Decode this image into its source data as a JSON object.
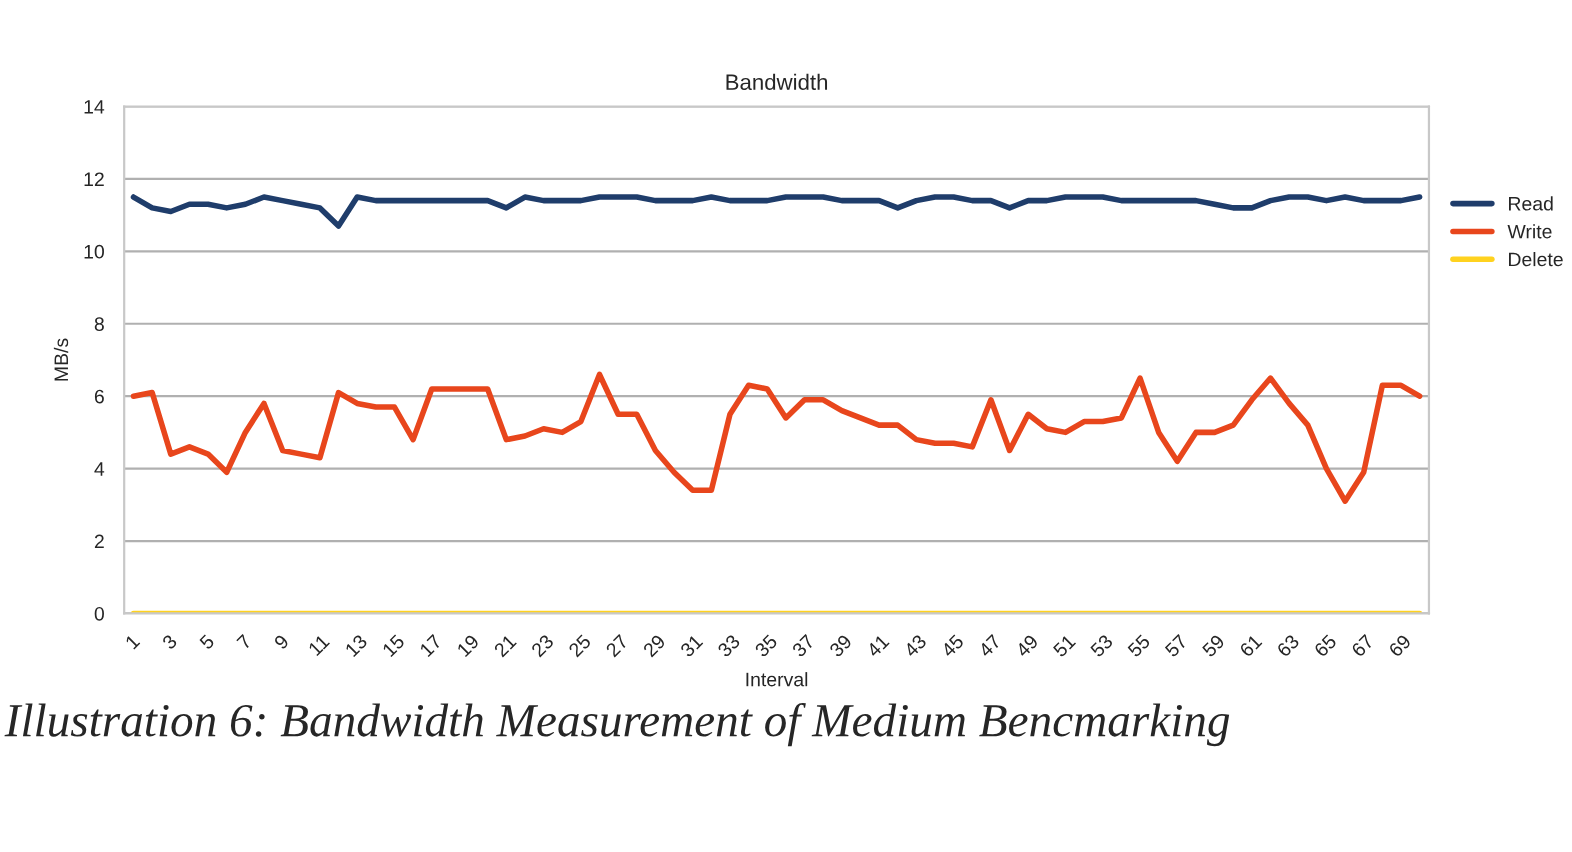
{
  "chart_data": {
    "type": "line",
    "title": "Bandwidth",
    "xlabel": "Interval",
    "ylabel": "MB/s",
    "categories": [
      "1",
      null,
      "3",
      null,
      "5",
      null,
      "7",
      null,
      "9",
      null,
      "11",
      null,
      "13",
      null,
      "15",
      null,
      "17",
      null,
      "19",
      null,
      "21",
      null,
      "23",
      null,
      "25",
      null,
      "27",
      null,
      "29",
      null,
      "31",
      null,
      "33",
      null,
      "35",
      null,
      "37",
      null,
      "39",
      null,
      "41",
      null,
      "43",
      null,
      "45",
      null,
      "47",
      null,
      "49",
      null,
      "51",
      null,
      "53",
      null,
      "55",
      null,
      "57",
      null,
      "59",
      null,
      "61",
      null,
      "63",
      null,
      "65",
      null,
      "67",
      null,
      "69",
      null
    ],
    "series": [
      {
        "name": "Read",
        "color": "#1f3d6b",
        "values": [
          11.5,
          11.2,
          11.1,
          11.3,
          11.3,
          11.2,
          11.3,
          11.5,
          11.4,
          11.3,
          11.2,
          10.7,
          11.5,
          11.4,
          11.4,
          11.4,
          11.4,
          11.4,
          11.4,
          11.4,
          11.2,
          11.5,
          11.4,
          11.4,
          11.4,
          11.5,
          11.5,
          11.5,
          11.4,
          11.4,
          11.4,
          11.5,
          11.4,
          11.4,
          11.4,
          11.5,
          11.5,
          11.5,
          11.4,
          11.4,
          11.4,
          11.2,
          11.4,
          11.5,
          11.5,
          11.4,
          11.4,
          11.2,
          11.4,
          11.4,
          11.5,
          11.5,
          11.5,
          11.4,
          11.4,
          11.4,
          11.4,
          11.4,
          11.3,
          11.2,
          11.2,
          11.4,
          11.5,
          11.5,
          11.4,
          11.5,
          11.4,
          11.4,
          11.4,
          11.5
        ]
      },
      {
        "name": "Write",
        "color": "#e8461c",
        "values": [
          6.0,
          6.1,
          4.4,
          4.6,
          4.4,
          3.9,
          5.0,
          5.8,
          4.5,
          4.4,
          4.3,
          6.1,
          5.8,
          5.7,
          5.7,
          4.8,
          6.2,
          6.2,
          6.2,
          6.2,
          4.8,
          4.9,
          5.1,
          5.0,
          5.3,
          6.6,
          5.5,
          5.5,
          4.5,
          3.9,
          3.4,
          3.4,
          5.5,
          6.3,
          6.2,
          5.4,
          5.9,
          5.9,
          5.6,
          5.4,
          5.2,
          5.2,
          4.8,
          4.7,
          4.7,
          4.6,
          5.9,
          4.5,
          5.5,
          5.1,
          5.0,
          5.3,
          5.3,
          5.4,
          6.5,
          5.0,
          4.2,
          5.0,
          5.0,
          5.2,
          5.9,
          6.5,
          5.8,
          5.2,
          4.0,
          3.1,
          3.9,
          6.3,
          6.3,
          6.0
        ]
      },
      {
        "name": "Delete",
        "color": "#ffd21f",
        "values": [
          0,
          0,
          0,
          0,
          0,
          0,
          0,
          0,
          0,
          0,
          0,
          0,
          0,
          0,
          0,
          0,
          0,
          0,
          0,
          0,
          0,
          0,
          0,
          0,
          0,
          0,
          0,
          0,
          0,
          0,
          0,
          0,
          0,
          0,
          0,
          0,
          0,
          0,
          0,
          0,
          0,
          0,
          0,
          0,
          0,
          0,
          0,
          0,
          0,
          0,
          0,
          0,
          0,
          0,
          0,
          0,
          0,
          0,
          0,
          0,
          0,
          0,
          0,
          0,
          0,
          0,
          0,
          0,
          0,
          0
        ]
      }
    ],
    "ylim": [
      0,
      14
    ],
    "yticks": [
      0,
      2,
      4,
      6,
      8,
      10,
      12,
      14
    ],
    "grid": "y",
    "legend": "right",
    "marker": "none",
    "line_style": "solid",
    "annotations": [
      "Illustration 6: Bandwidth Measurement of Medium Bencmarking"
    ]
  }
}
